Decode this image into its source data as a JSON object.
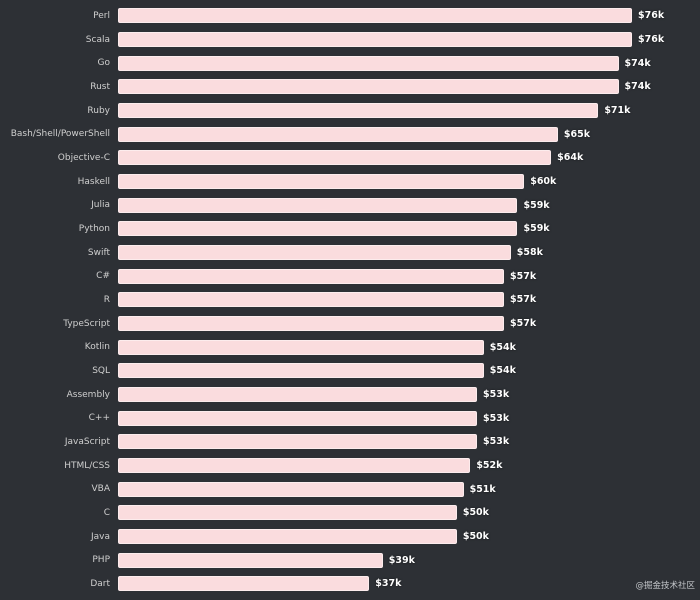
{
  "chart_data": {
    "type": "bar",
    "orientation": "horizontal",
    "title": "",
    "xlabel": "",
    "ylabel": "",
    "xlim": [
      0,
      76
    ],
    "value_unit": "USD thousands (median salary)",
    "grid": false,
    "legend_position": "none",
    "categories": [
      "Perl",
      "Scala",
      "Go",
      "Rust",
      "Ruby",
      "Bash/Shell/PowerShell",
      "Objective-C",
      "Haskell",
      "Julia",
      "Python",
      "Swift",
      "C#",
      "R",
      "TypeScript",
      "Kotlin",
      "SQL",
      "Assembly",
      "C++",
      "JavaScript",
      "HTML/CSS",
      "VBA",
      "C",
      "Java",
      "PHP",
      "Dart"
    ],
    "values": [
      76,
      76,
      74,
      74,
      71,
      65,
      64,
      60,
      59,
      59,
      58,
      57,
      57,
      57,
      54,
      54,
      53,
      53,
      53,
      52,
      51,
      50,
      50,
      39,
      37
    ],
    "value_labels": [
      "$76k",
      "$76k",
      "$74k",
      "$74k",
      "$71k",
      "$65k",
      "$64k",
      "$60k",
      "$59k",
      "$59k",
      "$58k",
      "$57k",
      "$57k",
      "$57k",
      "$54k",
      "$54k",
      "$53k",
      "$53k",
      "$53k",
      "$52k",
      "$51k",
      "$50k",
      "$50k",
      "$39k",
      "$37k"
    ],
    "bar_color": "#fadcde",
    "bar_border_color": "#fceced",
    "background_color": "#2d3035",
    "category_label_color": "#cfcfcf",
    "value_label_color": "#ffffff"
  },
  "watermark": {
    "text": "@掘金技术社区"
  }
}
